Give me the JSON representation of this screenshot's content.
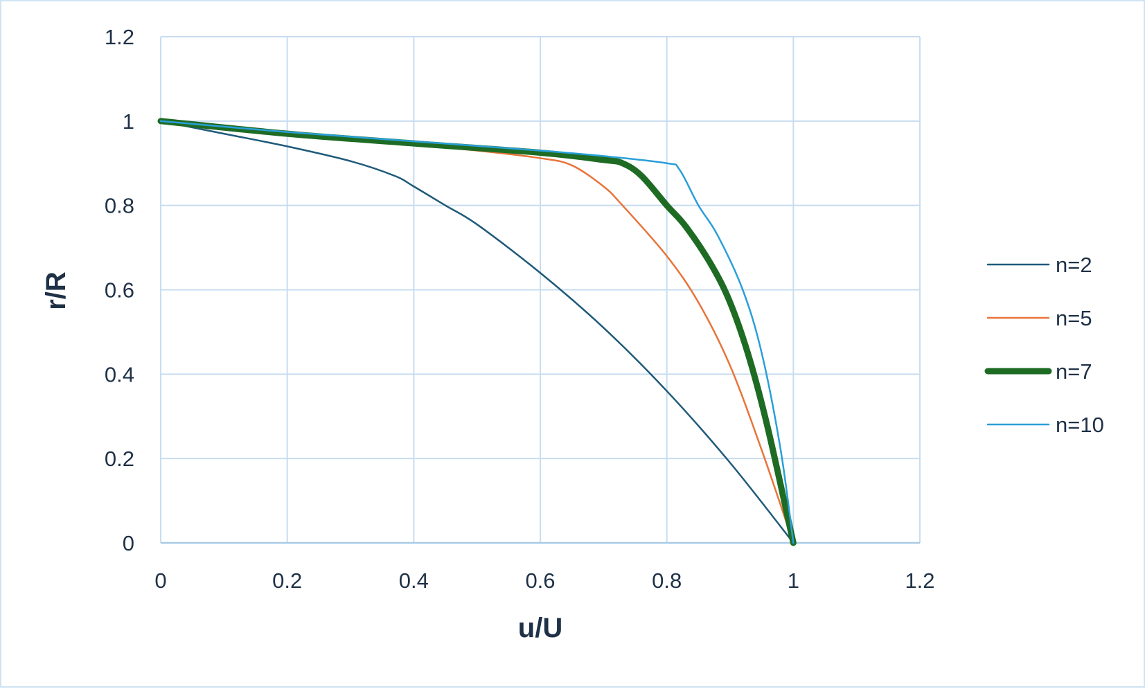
{
  "chart_data": {
    "type": "line",
    "title": "",
    "xlabel": "u/U",
    "ylabel": "r/R",
    "xlim": [
      0,
      1.2
    ],
    "ylim": [
      0,
      1.2
    ],
    "x_ticks": [
      "0",
      "0.2",
      "0.4",
      "0.6",
      "0.8",
      "1",
      "1.2"
    ],
    "y_ticks": [
      "0",
      "0.2",
      "0.4",
      "0.6",
      "0.8",
      "1",
      "1.2"
    ],
    "grid": true,
    "legend_position": "right",
    "series": [
      {
        "name": "n=2",
        "color": "#1f5a7a",
        "width": 2.5,
        "points": [
          [
            0,
            1.0
          ],
          [
            0.1,
            0.97
          ],
          [
            0.2,
            0.94
          ],
          [
            0.3,
            0.905
          ],
          [
            0.37,
            0.87
          ],
          [
            0.4,
            0.845
          ],
          [
            0.45,
            0.8
          ],
          [
            0.5,
            0.755
          ],
          [
            0.6,
            0.64
          ],
          [
            0.7,
            0.51
          ],
          [
            0.8,
            0.36
          ],
          [
            0.9,
            0.19
          ],
          [
            1.0,
            0.0
          ]
        ]
      },
      {
        "name": "n=5",
        "color": "#e8743b",
        "width": 2.5,
        "points": [
          [
            0,
            1.0
          ],
          [
            0.2,
            0.968
          ],
          [
            0.4,
            0.943
          ],
          [
            0.5,
            0.93
          ],
          [
            0.6,
            0.912
          ],
          [
            0.65,
            0.895
          ],
          [
            0.7,
            0.845
          ],
          [
            0.73,
            0.8
          ],
          [
            0.8,
            0.68
          ],
          [
            0.85,
            0.57
          ],
          [
            0.9,
            0.42
          ],
          [
            0.95,
            0.22
          ],
          [
            1.0,
            0.0
          ]
        ]
      },
      {
        "name": "n=7",
        "color": "#1e6b24",
        "width": 9,
        "points": [
          [
            0,
            1.0
          ],
          [
            0.2,
            0.97
          ],
          [
            0.4,
            0.947
          ],
          [
            0.6,
            0.925
          ],
          [
            0.7,
            0.908
          ],
          [
            0.73,
            0.9
          ],
          [
            0.76,
            0.87
          ],
          [
            0.8,
            0.8
          ],
          [
            0.83,
            0.75
          ],
          [
            0.87,
            0.66
          ],
          [
            0.9,
            0.57
          ],
          [
            0.93,
            0.44
          ],
          [
            0.96,
            0.27
          ],
          [
            1.0,
            0.0
          ]
        ]
      },
      {
        "name": "n=10",
        "color": "#2a9fd8",
        "width": 2.5,
        "points": [
          [
            0,
            1.0
          ],
          [
            0.2,
            0.974
          ],
          [
            0.4,
            0.952
          ],
          [
            0.6,
            0.93
          ],
          [
            0.7,
            0.917
          ],
          [
            0.8,
            0.9
          ],
          [
            0.82,
            0.885
          ],
          [
            0.85,
            0.8
          ],
          [
            0.88,
            0.73
          ],
          [
            0.92,
            0.6
          ],
          [
            0.95,
            0.45
          ],
          [
            0.98,
            0.22
          ],
          [
            1.0,
            0.0
          ]
        ]
      }
    ]
  }
}
